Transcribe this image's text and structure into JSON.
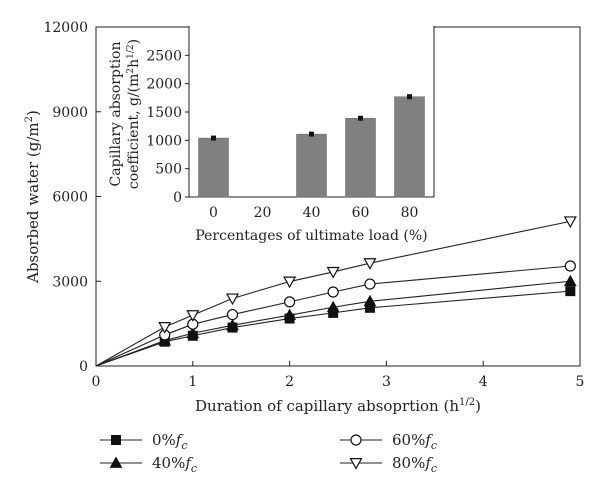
{
  "chart_data": [
    {
      "type": "line",
      "xlabel": "Duration of capillary absoprtion (h",
      "xlabel_sup": "1/2",
      "xlabel_end": ")",
      "ylabel": "Absorbed water (g/m",
      "ylabel_sup": "2",
      "ylabel_end": ")",
      "xlim": [
        0,
        5
      ],
      "ylim": [
        0,
        12000
      ],
      "xticks": [
        "0",
        "1",
        "2",
        "3",
        "4",
        "5"
      ],
      "yticks": [
        "0",
        "3000",
        "6000",
        "9000",
        "12000"
      ],
      "grid": false,
      "legend_position": "bottom",
      "series": [
        {
          "legend_prefix": "0%",
          "legend_sub": "f",
          "legend_subscript": "c",
          "marker": "square",
          "x": [
            0,
            0.71,
            1.0,
            1.41,
            2.0,
            2.45,
            2.83,
            4.9
          ],
          "y": [
            0,
            860,
            1070,
            1360,
            1680,
            1880,
            2060,
            2650
          ]
        },
        {
          "legend_prefix": "40%",
          "legend_sub": "f",
          "legend_subscript": "c",
          "marker": "triangle-up",
          "x": [
            0,
            0.71,
            1.0,
            1.41,
            2.0,
            2.45,
            2.83,
            4.9
          ],
          "y": [
            0,
            900,
            1160,
            1440,
            1800,
            2080,
            2290,
            3000
          ]
        },
        {
          "legend_prefix": "60%",
          "legend_sub": "f",
          "legend_subscript": "c",
          "marker": "circle-open",
          "x": [
            0,
            0.71,
            1.0,
            1.41,
            2.0,
            2.45,
            2.83,
            4.9
          ],
          "y": [
            0,
            1100,
            1480,
            1820,
            2270,
            2620,
            2900,
            3540
          ]
        },
        {
          "legend_prefix": "80%",
          "legend_sub": "f",
          "legend_subscript": "c",
          "marker": "triangle-down-open",
          "x": [
            0,
            0.71,
            1.0,
            1.41,
            2.0,
            2.45,
            2.83,
            4.9
          ],
          "y": [
            0,
            1380,
            1800,
            2390,
            2990,
            3330,
            3640,
            5120
          ]
        }
      ]
    },
    {
      "type": "bar",
      "categories": [
        "0",
        "20",
        "40",
        "60",
        "80"
      ],
      "values": [
        1040,
        null,
        1110,
        1390,
        1770
      ],
      "xlabel": "Percentages of ultimate load (%)",
      "ylabel_line1": "Capillary absorption",
      "ylabel_line2": "coefficient, g/(m",
      "ylabel_sup1": "2",
      "ylabel_mid": "h",
      "ylabel_sup2": "1/2",
      "ylabel_end": ")",
      "ylim": [
        0,
        3000
      ],
      "yticks": [
        "0",
        "500",
        "1000",
        "1500",
        "2000",
        "2500"
      ],
      "bar_color": "#808080",
      "error_bars": true
    }
  ]
}
